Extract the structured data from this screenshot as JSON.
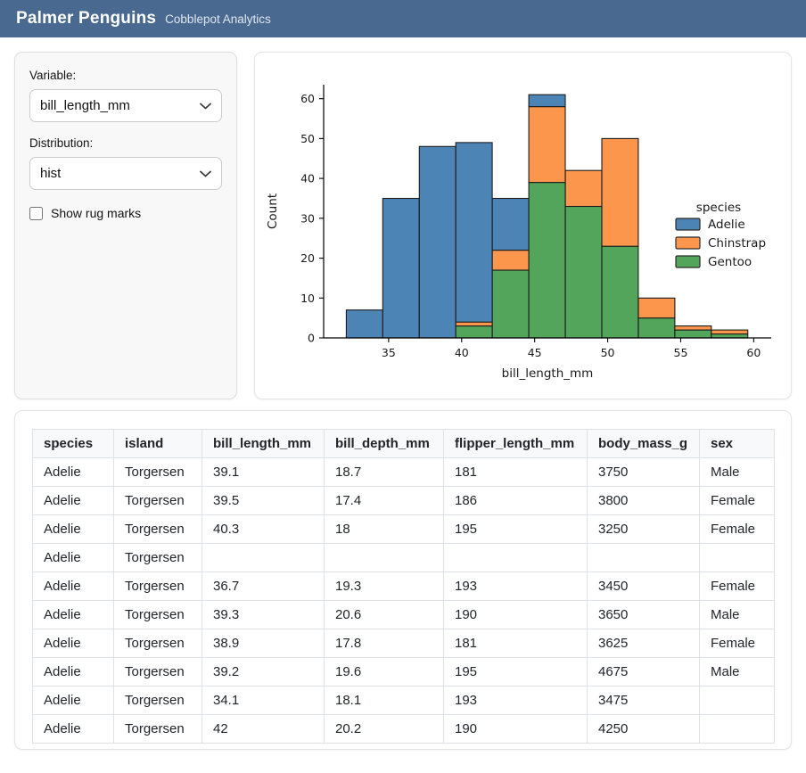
{
  "header": {
    "title": "Palmer Penguins",
    "subtitle": "Cobblepot Analytics"
  },
  "sidebar": {
    "variable_label": "Variable:",
    "variable_value": "bill_length_mm",
    "distribution_label": "Distribution:",
    "distribution_value": "hist",
    "rug_checkbox_label": "Show rug marks",
    "rug_checked": false
  },
  "chart_data": {
    "type": "histogram",
    "stacked": true,
    "title": "",
    "xlabel": "bill_length_mm",
    "ylabel": "Count",
    "bin_edges": [
      32.1,
      34.6,
      37.1,
      39.6,
      42.1,
      44.6,
      47.1,
      49.6,
      52.1,
      54.6,
      57.1,
      59.6
    ],
    "series": [
      {
        "name": "Adelie",
        "color": "#4c84b5",
        "counts": [
          7,
          35,
          48,
          45,
          13,
          3,
          0,
          0,
          0,
          0,
          0
        ]
      },
      {
        "name": "Chinstrap",
        "color": "#fc964d",
        "counts": [
          0,
          0,
          0,
          1,
          5,
          19,
          9,
          27,
          5,
          1,
          1
        ]
      },
      {
        "name": "Gentoo",
        "color": "#52a55a",
        "counts": [
          0,
          0,
          0,
          3,
          17,
          39,
          33,
          23,
          5,
          2,
          1
        ]
      }
    ],
    "stack_order": [
      "Gentoo",
      "Chinstrap",
      "Adelie"
    ],
    "bin_totals": [
      7,
      35,
      48,
      49,
      35,
      61,
      42,
      50,
      10,
      3,
      2
    ],
    "x_ticks": [
      35,
      40,
      45,
      50,
      55,
      60
    ],
    "y_ticks": [
      0,
      10,
      20,
      30,
      40,
      50,
      60
    ],
    "xlim": [
      30.55,
      61.2
    ],
    "ylim": [
      0,
      63.5
    ],
    "legend_title": "species",
    "legend_position": "center-right",
    "bar_edge_color": "#1c1c1c",
    "grid": false
  },
  "table": {
    "columns": [
      "species",
      "island",
      "bill_length_mm",
      "bill_depth_mm",
      "flipper_length_mm",
      "body_mass_g",
      "sex"
    ],
    "rows": [
      [
        "Adelie",
        "Torgersen",
        "39.1",
        "18.7",
        "181",
        "3750",
        "Male"
      ],
      [
        "Adelie",
        "Torgersen",
        "39.5",
        "17.4",
        "186",
        "3800",
        "Female"
      ],
      [
        "Adelie",
        "Torgersen",
        "40.3",
        "18",
        "195",
        "3250",
        "Female"
      ],
      [
        "Adelie",
        "Torgersen",
        "",
        "",
        "",
        "",
        ""
      ],
      [
        "Adelie",
        "Torgersen",
        "36.7",
        "19.3",
        "193",
        "3450",
        "Female"
      ],
      [
        "Adelie",
        "Torgersen",
        "39.3",
        "20.6",
        "190",
        "3650",
        "Male"
      ],
      [
        "Adelie",
        "Torgersen",
        "38.9",
        "17.8",
        "181",
        "3625",
        "Female"
      ],
      [
        "Adelie",
        "Torgersen",
        "39.2",
        "19.6",
        "195",
        "4675",
        "Male"
      ],
      [
        "Adelie",
        "Torgersen",
        "34.1",
        "18.1",
        "193",
        "3475",
        ""
      ],
      [
        "Adelie",
        "Torgersen",
        "42",
        "20.2",
        "190",
        "4250",
        ""
      ]
    ]
  },
  "colors": {
    "header_bg": "#4a6990",
    "sidebar_bg": "#f8f8f8",
    "table_header_bg": "#f8f9fa",
    "table_border": "#dee2e6",
    "adelie": "#4c84b5",
    "chinstrap": "#fc964d",
    "gentoo": "#52a55a"
  }
}
